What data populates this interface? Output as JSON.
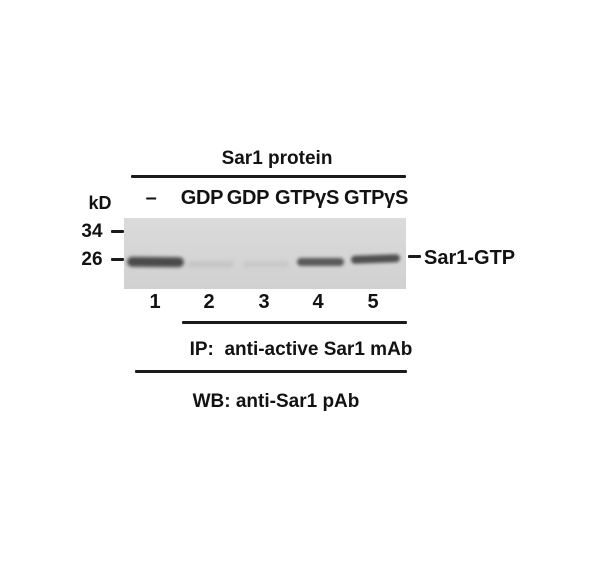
{
  "figure": {
    "title": "Sar1 protein",
    "unit_label": "kD",
    "mw_markers": [
      "34",
      "26"
    ],
    "lane_conditions": [
      "–",
      "GDP",
      "GDP",
      "GTPγS",
      "GTPγS"
    ],
    "lane_numbers": [
      "1",
      "2",
      "3",
      "4",
      "5"
    ],
    "band_annotation": "Sar1-GTP",
    "ip_caption": "IP:  anti-active Sar1 mAb",
    "wb_caption": "WB: anti-Sar1 pAb"
  },
  "blot": {
    "background_color": "#d6d6d6",
    "band_position_kd": "~25 (between 26 and bottom of 26 marker)",
    "bands": [
      {
        "lane": "1",
        "condition": "–",
        "intensity": "strong",
        "color": "#4a4a4a"
      },
      {
        "lane": "2",
        "condition": "GDP",
        "intensity": "very faint",
        "color": "#c2c2c2"
      },
      {
        "lane": "3",
        "condition": "GDP",
        "intensity": "very faint",
        "color": "#c6c6c6"
      },
      {
        "lane": "4",
        "condition": "GTPγS",
        "intensity": "medium",
        "color": "#595959"
      },
      {
        "lane": "5",
        "condition": "GTPγS",
        "intensity": "medium",
        "color": "#505050"
      }
    ]
  },
  "colors": {
    "text": "#121212",
    "rule": "#1b1b1b",
    "background": "#ffffff"
  }
}
